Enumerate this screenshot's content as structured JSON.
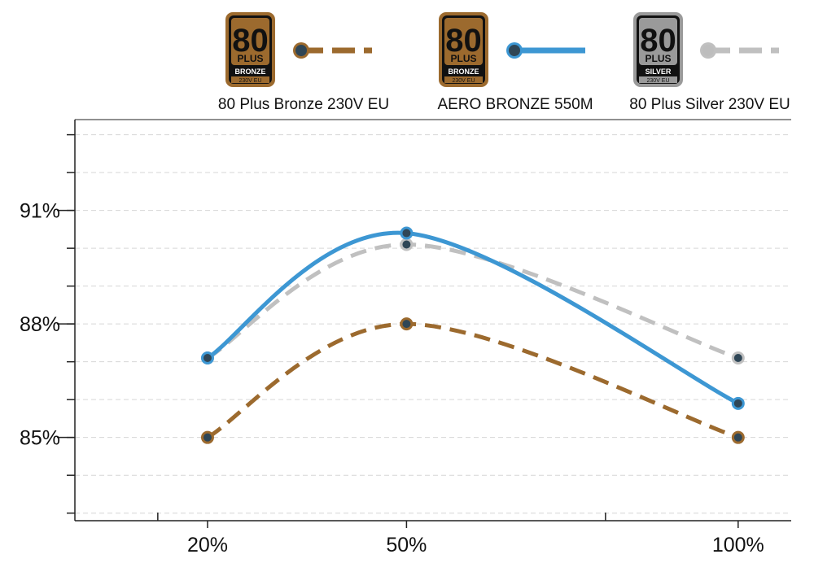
{
  "chart_data": {
    "type": "line",
    "x": [
      "20%",
      "50%",
      "100%"
    ],
    "x_values": [
      20,
      50,
      100
    ],
    "xlim": [
      0,
      108
    ],
    "ylim": [
      82.8,
      93.4
    ],
    "yticks": [
      "85%",
      "88%",
      "91%"
    ],
    "ytick_values": [
      85,
      88,
      91
    ],
    "grid": true,
    "legend_position": "top",
    "series": [
      {
        "name": "80 Plus Bronze 230V EU",
        "values": [
          85,
          88,
          85
        ],
        "color": "#9c6a2e",
        "dashed": true,
        "badge": {
          "number": "80",
          "plus": "PLUS",
          "tier": "BRONZE",
          "region": "230V EU",
          "color": "#9c6a2e"
        }
      },
      {
        "name": "AERO BRONZE 550M",
        "values": [
          87.1,
          90.4,
          85.9
        ],
        "color": "#3d97d3",
        "dashed": false,
        "badge": {
          "number": "80",
          "plus": "PLUS",
          "tier": "BRONZE",
          "region": "230V EU",
          "color": "#9c6a2e"
        }
      },
      {
        "name": "80 Plus Silver 230V EU",
        "values": [
          87.1,
          90.1,
          87.1
        ],
        "color": "#c0c0c0",
        "dashed": true,
        "badge": {
          "number": "80",
          "plus": "PLUS",
          "tier": "SILVER",
          "region": "230V EU",
          "color": "#9a9a9a"
        }
      }
    ]
  }
}
